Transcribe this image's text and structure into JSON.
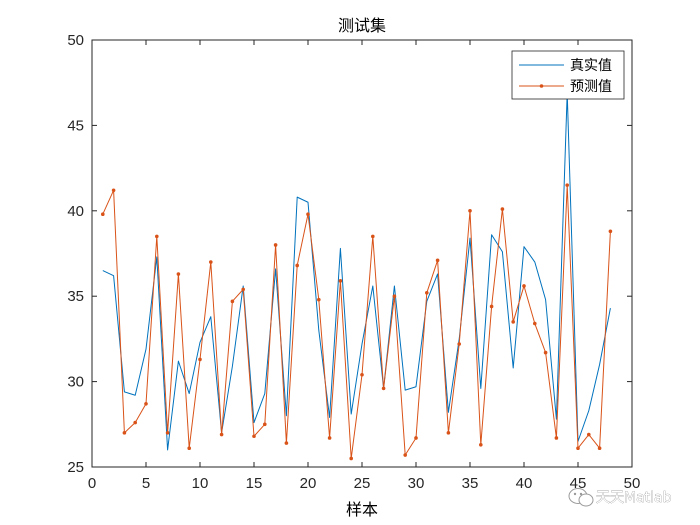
{
  "chart_data": {
    "type": "line",
    "title": "测试集",
    "xlabel": "样本",
    "ylabel": "",
    "xlim": [
      0,
      50
    ],
    "ylim": [
      25,
      50
    ],
    "xticks": [
      0,
      5,
      10,
      15,
      20,
      25,
      30,
      35,
      40,
      45,
      50
    ],
    "yticks": [
      25,
      30,
      35,
      40,
      45,
      50
    ],
    "grid": false,
    "legend_position": "top-right",
    "x": [
      1,
      2,
      3,
      4,
      5,
      6,
      7,
      8,
      9,
      10,
      11,
      12,
      13,
      14,
      15,
      16,
      17,
      18,
      19,
      20,
      21,
      22,
      23,
      24,
      25,
      26,
      27,
      28,
      29,
      30,
      31,
      32,
      33,
      34,
      35,
      36,
      37,
      38,
      39,
      40,
      41,
      42,
      43,
      44,
      45,
      46,
      47,
      48
    ],
    "series": [
      {
        "name": "真实值",
        "color": "#0072BD",
        "marker": "none",
        "values": [
          36.5,
          36.2,
          29.4,
          29.2,
          31.9,
          37.3,
          26.0,
          31.2,
          29.3,
          32.3,
          33.8,
          27.0,
          30.9,
          35.6,
          27.6,
          29.3,
          36.6,
          28.0,
          40.8,
          40.5,
          33.0,
          27.9,
          37.8,
          28.1,
          32.2,
          35.6,
          29.6,
          35.6,
          29.5,
          29.7,
          34.7,
          36.3,
          28.2,
          32.5,
          38.4,
          29.6,
          38.6,
          37.6,
          30.8,
          37.9,
          37.0,
          34.8,
          27.8,
          46.9,
          26.5,
          28.3,
          31.0,
          34.3
        ]
      },
      {
        "name": "预测值",
        "color": "#D95319",
        "marker": "dot",
        "values": [
          39.8,
          41.2,
          27.0,
          27.6,
          28.7,
          38.5,
          27.0,
          36.3,
          26.1,
          31.3,
          37.0,
          26.9,
          34.7,
          35.4,
          26.8,
          27.5,
          38.0,
          26.4,
          36.8,
          39.8,
          34.8,
          26.7,
          35.9,
          25.5,
          30.4,
          38.5,
          29.6,
          35.0,
          25.7,
          26.7,
          35.2,
          37.1,
          27.0,
          32.2,
          40.0,
          26.3,
          34.4,
          40.1,
          33.5,
          35.6,
          33.4,
          31.7,
          26.7,
          41.5,
          26.1,
          26.9,
          26.1,
          38.8
        ]
      }
    ]
  },
  "watermark": {
    "text": "天天Matlab",
    "icon": "wechat-logo-icon"
  }
}
